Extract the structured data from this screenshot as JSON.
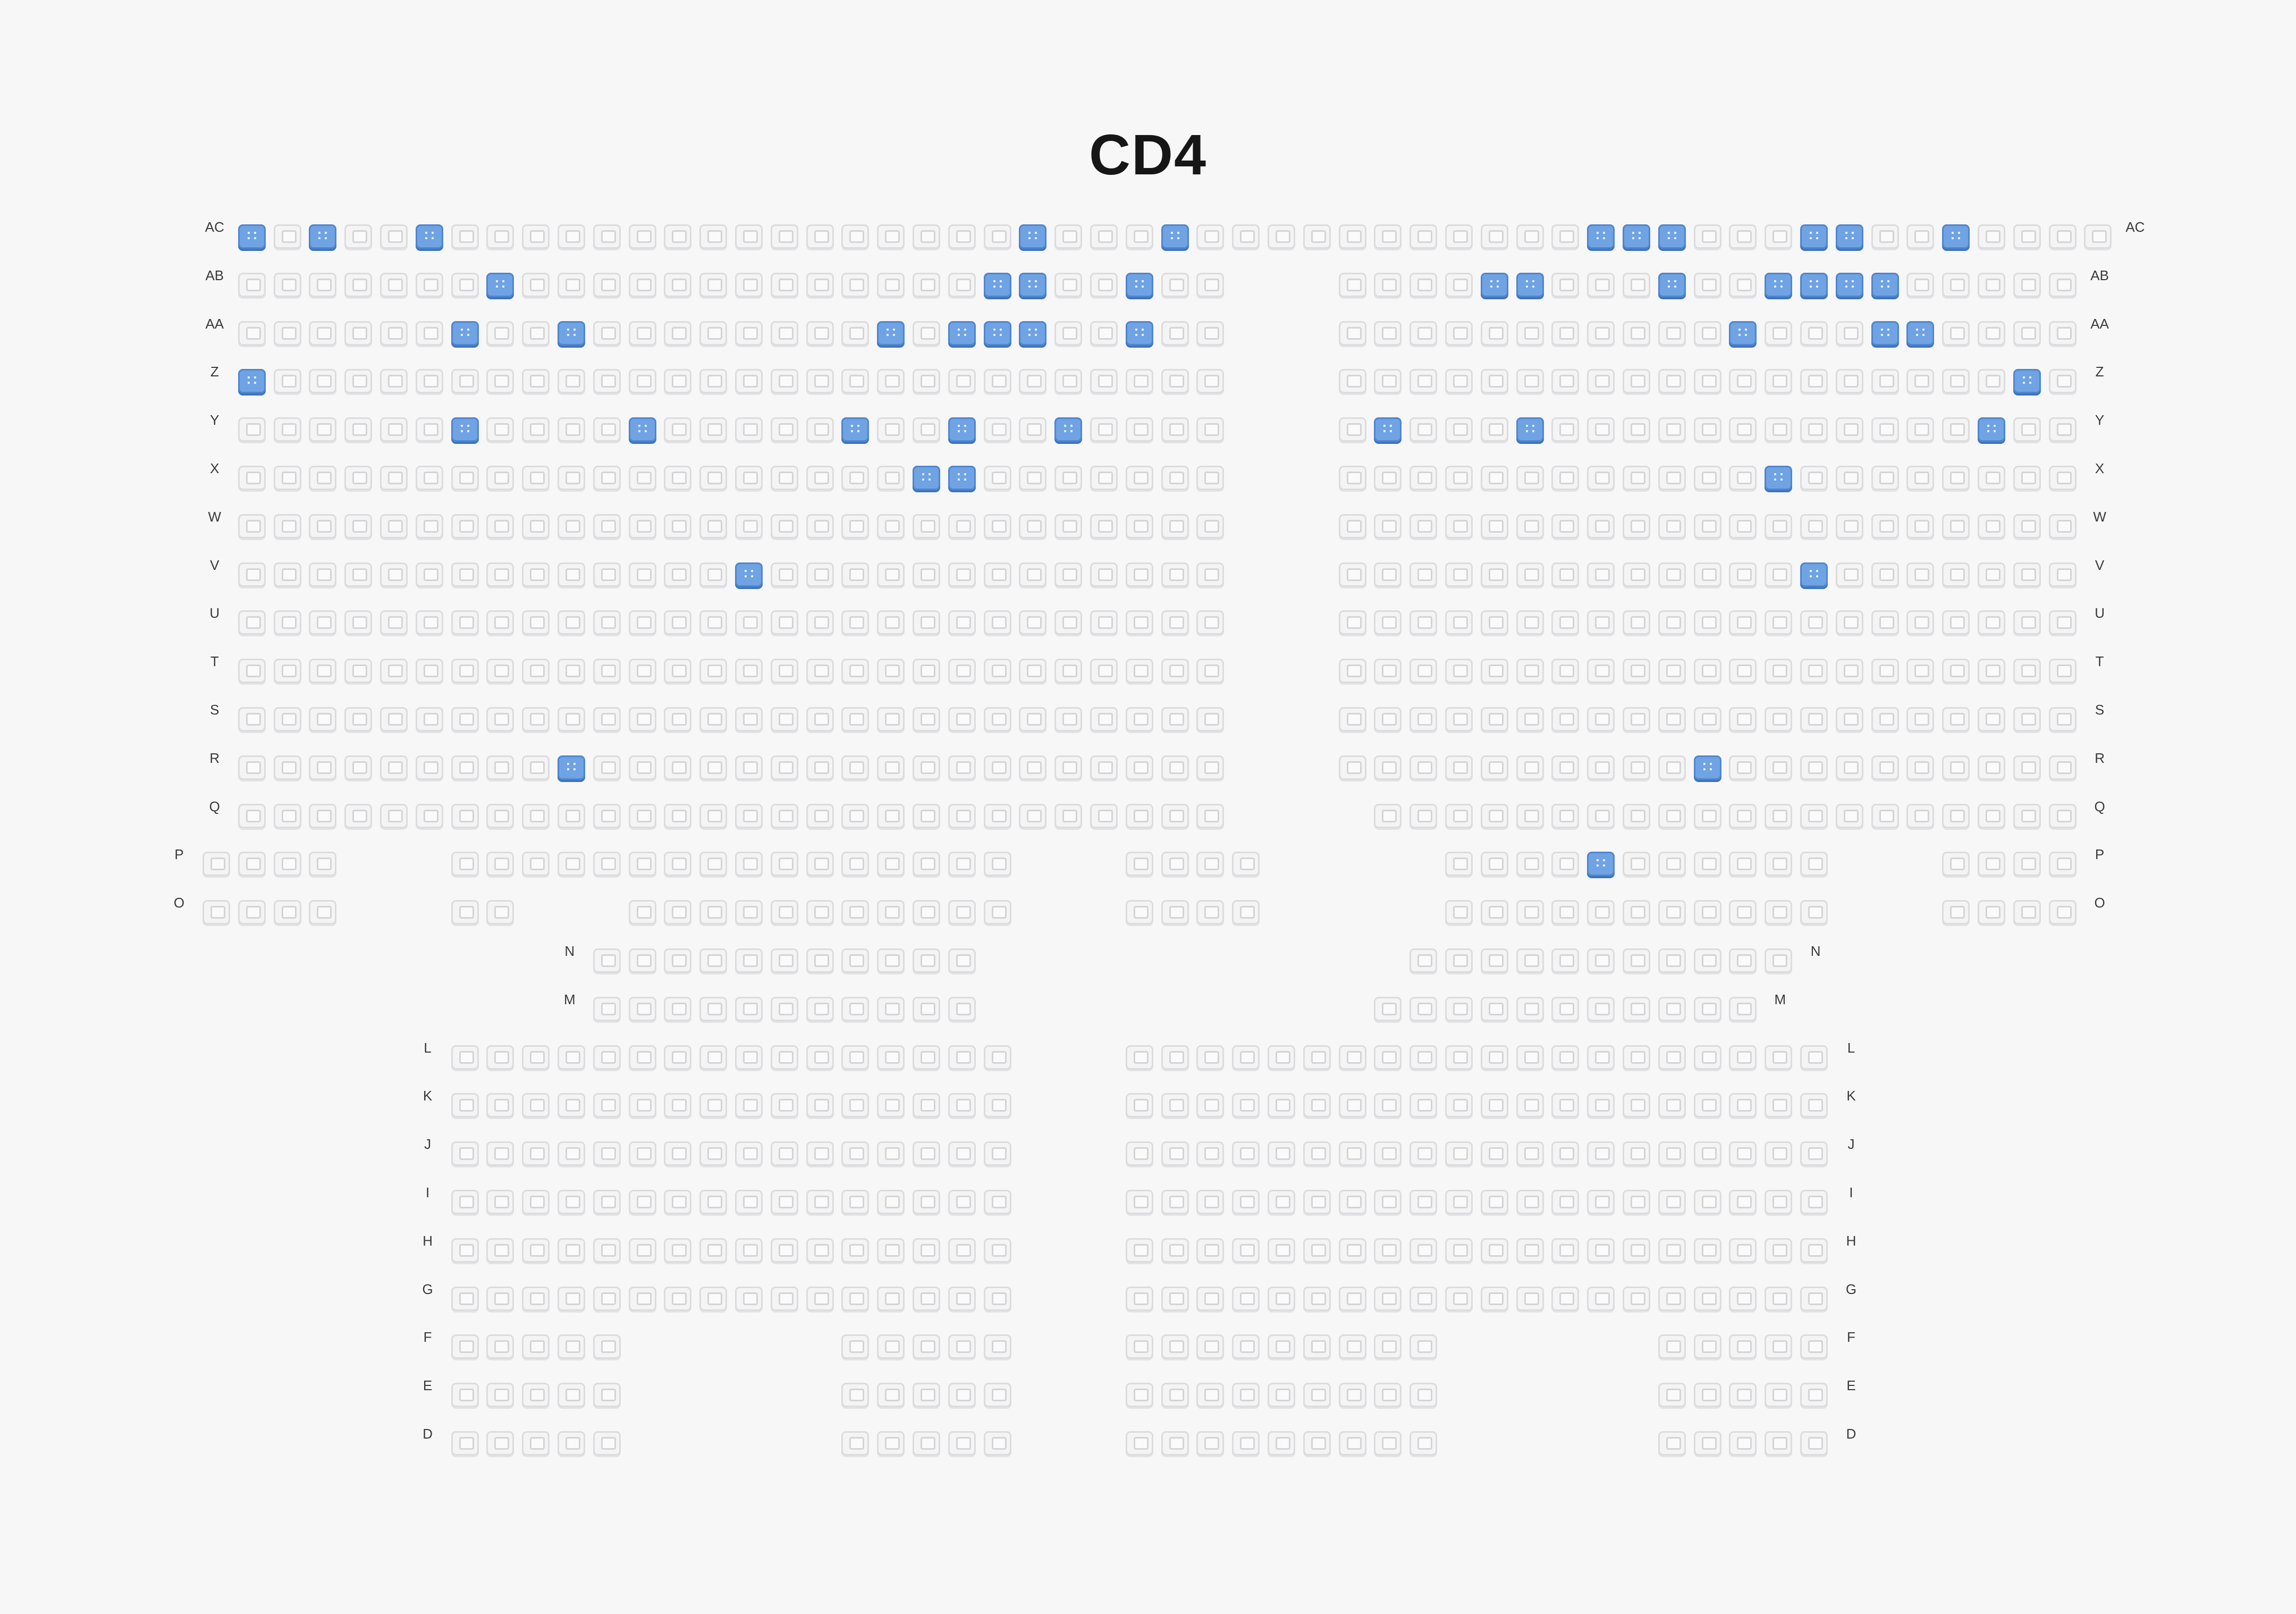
{
  "screen": {
    "title": "CD4",
    "colors": {
      "background": "#f7f7f8",
      "seat_available": "#f4f4f5",
      "seat_selected": "#6fa3e3"
    }
  },
  "rows": [
    {
      "label": "AC",
      "blocks": [
        {
          "start": 1,
          "count": 53
        }
      ],
      "selected": [
        1,
        3,
        6,
        23,
        27,
        39,
        40,
        41,
        45,
        46,
        49
      ]
    },
    {
      "label": "AB",
      "blocks": [
        {
          "start": 1,
          "count": 28
        },
        {
          "start": 32,
          "count": 21
        }
      ],
      "selected": [
        8,
        22,
        23,
        26,
        36,
        37,
        41,
        44,
        45,
        46,
        47
      ]
    },
    {
      "label": "AA",
      "blocks": [
        {
          "start": 1,
          "count": 28
        },
        {
          "start": 32,
          "count": 21
        }
      ],
      "selected": [
        7,
        10,
        19,
        21,
        22,
        23,
        26,
        43,
        47,
        48
      ]
    },
    {
      "label": "Z",
      "blocks": [
        {
          "start": 1,
          "count": 28
        },
        {
          "start": 32,
          "count": 21
        }
      ],
      "selected": [
        1,
        51
      ]
    },
    {
      "label": "Y",
      "blocks": [
        {
          "start": 1,
          "count": 28
        },
        {
          "start": 32,
          "count": 21
        }
      ],
      "selected": [
        7,
        12,
        18,
        21,
        24,
        33,
        37,
        50
      ]
    },
    {
      "label": "X",
      "blocks": [
        {
          "start": 1,
          "count": 28
        },
        {
          "start": 32,
          "count": 21
        }
      ],
      "selected": [
        20,
        21,
        44
      ]
    },
    {
      "label": "W",
      "blocks": [
        {
          "start": 1,
          "count": 28
        },
        {
          "start": 32,
          "count": 21
        }
      ],
      "selected": []
    },
    {
      "label": "V",
      "blocks": [
        {
          "start": 1,
          "count": 28
        },
        {
          "start": 32,
          "count": 21
        }
      ],
      "selected": [
        15,
        45
      ]
    },
    {
      "label": "U",
      "blocks": [
        {
          "start": 1,
          "count": 28
        },
        {
          "start": 32,
          "count": 21
        }
      ],
      "selected": []
    },
    {
      "label": "T",
      "blocks": [
        {
          "start": 1,
          "count": 28
        },
        {
          "start": 32,
          "count": 21
        }
      ],
      "selected": []
    },
    {
      "label": "S",
      "blocks": [
        {
          "start": 1,
          "count": 28
        },
        {
          "start": 32,
          "count": 21
        }
      ],
      "selected": []
    },
    {
      "label": "R",
      "blocks": [
        {
          "start": 1,
          "count": 28
        },
        {
          "start": 32,
          "count": 21
        }
      ],
      "selected": [
        10,
        42
      ]
    },
    {
      "label": "Q",
      "blocks": [
        {
          "start": 1,
          "count": 28
        },
        {
          "start": 33,
          "count": 20
        }
      ],
      "selected": []
    },
    {
      "label": "P",
      "blocks": [
        {
          "start": 0,
          "count": 4
        },
        {
          "start": 7,
          "count": 16
        },
        {
          "start": 26,
          "count": 4
        },
        {
          "start": 35,
          "count": 11
        },
        {
          "start": 49,
          "count": 4
        }
      ],
      "selected": [
        39
      ]
    },
    {
      "label": "O",
      "blocks": [
        {
          "start": 0,
          "count": 4
        },
        {
          "start": 7,
          "count": 2
        },
        {
          "start": 12,
          "count": 11
        },
        {
          "start": 26,
          "count": 4
        },
        {
          "start": 35,
          "count": 11
        },
        {
          "start": 49,
          "count": 4
        }
      ],
      "selected": []
    },
    {
      "label": "N",
      "blocks": [
        {
          "start": 11,
          "count": 11
        },
        {
          "start": 34,
          "count": 11
        }
      ],
      "selected": []
    },
    {
      "label": "M",
      "blocks": [
        {
          "start": 11,
          "count": 11
        },
        {
          "start": 33,
          "count": 11
        }
      ],
      "selected": []
    },
    {
      "label": "L",
      "blocks": [
        {
          "start": 7,
          "count": 16
        },
        {
          "start": 26,
          "count": 20
        }
      ],
      "selected": []
    },
    {
      "label": "K",
      "blocks": [
        {
          "start": 7,
          "count": 16
        },
        {
          "start": 26,
          "count": 20
        }
      ],
      "selected": []
    },
    {
      "label": "J",
      "blocks": [
        {
          "start": 7,
          "count": 16
        },
        {
          "start": 26,
          "count": 20
        }
      ],
      "selected": []
    },
    {
      "label": "I",
      "blocks": [
        {
          "start": 7,
          "count": 16
        },
        {
          "start": 26,
          "count": 20
        }
      ],
      "selected": []
    },
    {
      "label": "H",
      "blocks": [
        {
          "start": 7,
          "count": 16
        },
        {
          "start": 26,
          "count": 20
        }
      ],
      "selected": []
    },
    {
      "label": "G",
      "blocks": [
        {
          "start": 7,
          "count": 16
        },
        {
          "start": 26,
          "count": 20
        }
      ],
      "selected": []
    },
    {
      "label": "F",
      "blocks": [
        {
          "start": 7,
          "count": 5
        },
        {
          "start": 18,
          "count": 5
        },
        {
          "start": 26,
          "count": 9
        },
        {
          "start": 41,
          "count": 5
        }
      ],
      "selected": []
    },
    {
      "label": "E",
      "blocks": [
        {
          "start": 7,
          "count": 5
        },
        {
          "start": 18,
          "count": 5
        },
        {
          "start": 26,
          "count": 9
        },
        {
          "start": 41,
          "count": 5
        }
      ],
      "selected": []
    },
    {
      "label": "D",
      "blocks": [
        {
          "start": 7,
          "count": 5
        },
        {
          "start": 18,
          "count": 5
        },
        {
          "start": 26,
          "count": 9
        },
        {
          "start": 41,
          "count": 5
        }
      ],
      "selected": []
    }
  ]
}
